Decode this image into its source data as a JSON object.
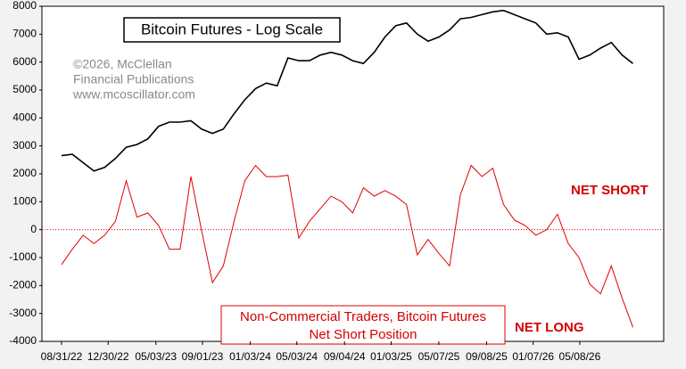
{
  "chart_data": {
    "type": "line",
    "title": "Bitcoin Futures - Log Scale",
    "credit": [
      "©2026, McClellan",
      "Financial Publications",
      "www.mcoscillator.com"
    ],
    "series_label": [
      "Non-Commercial Traders, Bitcoin Futures",
      "Net Short Position"
    ],
    "annotations": [
      "NET SHORT",
      "NET LONG"
    ],
    "x": [
      "2022-08-31",
      "2022-09-28",
      "2022-10-26",
      "2022-11-23",
      "2022-12-21",
      "2023-01-18",
      "2023-02-15",
      "2023-03-15",
      "2023-04-12",
      "2023-05-10",
      "2023-06-07",
      "2023-07-05",
      "2023-08-02",
      "2023-08-30",
      "2023-09-27",
      "2023-10-25",
      "2023-11-22",
      "2023-12-20",
      "2024-01-17",
      "2024-02-14",
      "2024-03-13",
      "2024-04-10",
      "2024-05-08",
      "2024-06-05",
      "2024-07-03",
      "2024-07-31",
      "2024-08-28",
      "2024-09-25",
      "2024-10-23",
      "2024-11-20",
      "2024-12-18",
      "2025-01-15",
      "2025-02-12",
      "2025-03-12",
      "2025-04-09",
      "2025-05-07",
      "2025-06-04",
      "2025-07-02",
      "2025-07-30",
      "2025-08-27",
      "2025-09-24",
      "2025-10-22",
      "2025-11-19",
      "2025-12-17",
      "2026-01-14",
      "2026-02-11",
      "2026-03-11",
      "2026-04-08",
      "2026-05-06",
      "2026-06-03",
      "2026-07-01",
      "2026-07-29",
      "2026-08-26",
      "2026-09-23"
    ],
    "series": [
      {
        "color": "#000000",
        "values": [
          2650,
          2700,
          2400,
          2100,
          2230,
          2550,
          2950,
          3050,
          3250,
          3700,
          3850,
          3850,
          3900,
          3600,
          3450,
          3600,
          4150,
          4650,
          5050,
          5250,
          5150,
          6150,
          6050,
          6050,
          6250,
          6350,
          6250,
          6050,
          5950,
          6350,
          6900,
          7300,
          7400,
          7000,
          6750,
          6900,
          7150,
          7550,
          7600,
          7700,
          7800,
          7850,
          7700,
          7550,
          7400,
          7000,
          7050,
          6900,
          6100,
          6250,
          6500,
          6700,
          6250,
          5950
        ]
      },
      {
        "color": "#e00000",
        "values": [
          -1250,
          -700,
          -200,
          -500,
          -200,
          300,
          1750,
          450,
          600,
          150,
          -700,
          -700,
          1900,
          -50,
          -1900,
          -1300,
          300,
          1750,
          2300,
          1900,
          1900,
          1950,
          -300,
          300,
          750,
          1200,
          1000,
          600,
          1500,
          1200,
          1400,
          1200,
          900,
          -900,
          -350,
          -850,
          -1300,
          1250,
          2300,
          1900,
          2200,
          900,
          350,
          150,
          -200,
          0,
          550,
          -500,
          -1000,
          -1950,
          -2300,
          -1300,
          -2450,
          -3500
        ]
      }
    ],
    "xlim": [
      "2022-07-11",
      "2026-12-12"
    ],
    "xticks": [
      {
        "value": "2022-08-31",
        "label": "08/31/22"
      },
      {
        "value": "2022-12-30",
        "label": "12/30/22"
      },
      {
        "value": "2023-05-03",
        "label": "05/03/23"
      },
      {
        "value": "2023-09-01",
        "label": "09/01/23"
      },
      {
        "value": "2024-01-03",
        "label": "01/03/24"
      },
      {
        "value": "2024-05-03",
        "label": "05/03/24"
      },
      {
        "value": "2024-09-04",
        "label": "09/04/24"
      },
      {
        "value": "2025-01-03",
        "label": "01/03/25"
      },
      {
        "value": "2025-05-07",
        "label": "05/07/25"
      },
      {
        "value": "2025-09-08",
        "label": "09/08/25"
      },
      {
        "value": "2026-01-07",
        "label": "01/07/26"
      },
      {
        "value": "2026-05-08",
        "label": "05/08/26"
      }
    ],
    "ylim": [
      -4000,
      8000
    ],
    "yticks": [
      -4000,
      -3000,
      -2000,
      -1000,
      0,
      1000,
      2000,
      3000,
      4000,
      5000,
      6000,
      7000,
      8000
    ],
    "zero_line": true,
    "annotation_color": "#d40000",
    "credit_color": "#8a8a8a"
  }
}
